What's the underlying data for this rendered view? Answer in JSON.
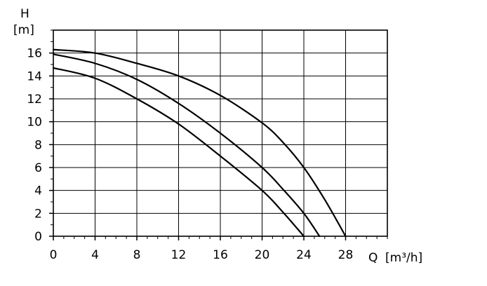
{
  "chart_data": {
    "type": "line",
    "y_axis_label": "H",
    "y_axis_unit": "[m]",
    "x_axis_label": "Q",
    "x_axis_unit": "[m³/h]",
    "xlim": [
      0,
      32
    ],
    "ylim": [
      0,
      18
    ],
    "x_ticks": [
      0,
      4,
      8,
      12,
      16,
      20,
      24,
      28
    ],
    "y_ticks": [
      0,
      2,
      4,
      6,
      8,
      10,
      12,
      14,
      16
    ],
    "x_minor_step": 1,
    "y_minor_step": 1,
    "grid": true,
    "line_color": "#000000",
    "grid_color": "#000000",
    "series": [
      {
        "points": [
          [
            0,
            16.3
          ],
          [
            4,
            16.0
          ],
          [
            8,
            15.1
          ],
          [
            12,
            14.0
          ],
          [
            16,
            12.3
          ],
          [
            20,
            9.9
          ],
          [
            22,
            8.2
          ],
          [
            24,
            6.0
          ],
          [
            26,
            3.2
          ],
          [
            28,
            0
          ]
        ]
      },
      {
        "points": [
          [
            0,
            15.9
          ],
          [
            4,
            15.1
          ],
          [
            8,
            13.7
          ],
          [
            12,
            11.6
          ],
          [
            16,
            9.0
          ],
          [
            20,
            6.0
          ],
          [
            22,
            4.1
          ],
          [
            24,
            2.0
          ],
          [
            25.5,
            0
          ]
        ]
      },
      {
        "points": [
          [
            0,
            14.7
          ],
          [
            4,
            13.8
          ],
          [
            8,
            12.0
          ],
          [
            12,
            9.8
          ],
          [
            16,
            7.0
          ],
          [
            20,
            4.0
          ],
          [
            22,
            2.1
          ],
          [
            24,
            0
          ]
        ]
      }
    ]
  }
}
